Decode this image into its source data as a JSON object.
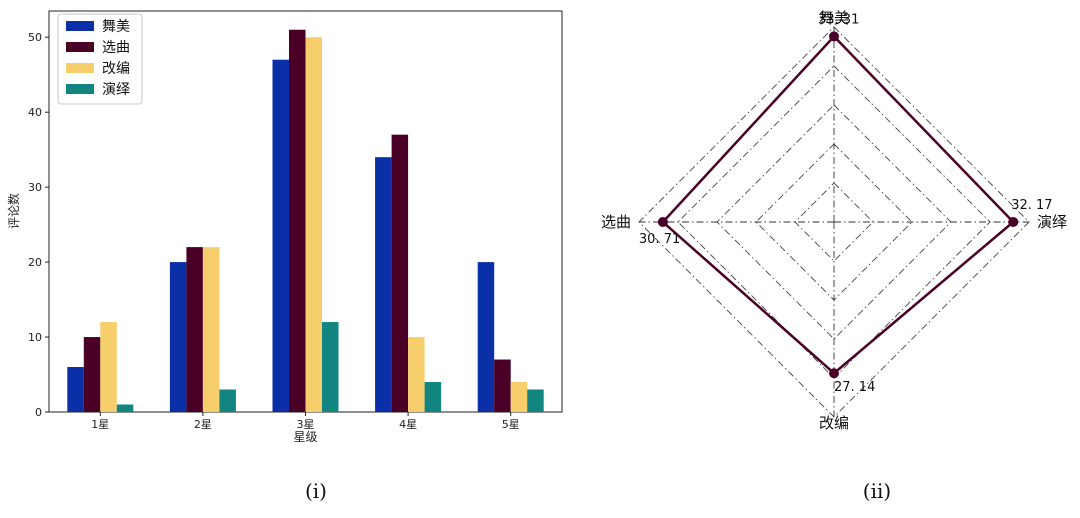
{
  "figure": {
    "captions": [
      "(i)",
      "(ii)"
    ]
  },
  "chart_data": [
    {
      "type": "bar",
      "categories": [
        "1星",
        "2星",
        "3星",
        "4星",
        "5星"
      ],
      "xlabel": "星级",
      "ylabel": "评论数",
      "ylim": [
        0,
        53.5
      ],
      "yticks": [
        0,
        10,
        20,
        30,
        40,
        50
      ],
      "grid": false,
      "legend_position": "top-left",
      "series": [
        {
          "name": "舞美",
          "color": "#0a2fa6",
          "values": [
            6,
            20,
            47,
            34,
            20
          ]
        },
        {
          "name": "选曲",
          "color": "#4a0026",
          "values": [
            10,
            22,
            51,
            37,
            7
          ]
        },
        {
          "name": "改编",
          "color": "#f6ce6b",
          "values": [
            12,
            22,
            50,
            10,
            4
          ]
        },
        {
          "name": "演绎",
          "color": "#128581",
          "values": [
            1,
            3,
            12,
            4,
            3
          ]
        }
      ]
    },
    {
      "type": "radar",
      "axes": [
        "舞美",
        "演绎",
        "改编",
        "选曲"
      ],
      "value_labels": [
        "33. 31",
        "32. 17",
        "27. 14",
        "30. 71"
      ],
      "values": [
        33.31,
        32.17,
        27.14,
        30.71
      ],
      "rmax": 35,
      "rings": [
        7,
        14,
        21,
        28,
        35
      ],
      "line_color": "#4a0026",
      "grid_style": "dash-dot"
    }
  ]
}
